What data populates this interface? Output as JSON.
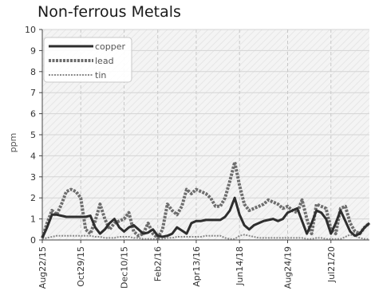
{
  "chart_data": {
    "type": "line",
    "title": "Non-ferrous Metals",
    "ylabel": "ppm",
    "ylim": [
      0,
      10
    ],
    "yticks": [
      "0",
      "1",
      "2",
      "3",
      "4",
      "5",
      "6",
      "7",
      "8",
      "9",
      "10"
    ],
    "xtick_labels": [
      "Aug22/15",
      "Oct29/15",
      "Dec10/15",
      "Feb2/16",
      "Apr13/16",
      "Jun14/18",
      "Aug24/19",
      "Jul21/20"
    ],
    "xtick_index": [
      0,
      8,
      17,
      24,
      32,
      41,
      51,
      60
    ],
    "n_points": 69,
    "grid": true,
    "legend_position": "top-left",
    "colors": {
      "copper": "#2e2e2e",
      "lead": "#6e6e6e",
      "tin": "#8a8a8a"
    },
    "series": [
      {
        "name": "copper",
        "style": "solid",
        "values": [
          0.1,
          0.6,
          1.2,
          1.2,
          1.15,
          1.1,
          1.1,
          1.1,
          1.1,
          1.1,
          1.15,
          0.6,
          0.3,
          0.5,
          0.8,
          1.0,
          0.6,
          0.4,
          0.6,
          0.7,
          0.5,
          0.3,
          0.35,
          0.5,
          0.2,
          0.15,
          0.2,
          0.3,
          0.6,
          0.45,
          0.3,
          0.8,
          0.9,
          0.9,
          0.95,
          0.95,
          0.95,
          0.95,
          1.1,
          1.4,
          2.0,
          1.2,
          0.7,
          0.5,
          0.7,
          0.8,
          0.9,
          0.95,
          1.0,
          0.9,
          1.0,
          1.3,
          1.4,
          1.5,
          0.9,
          0.3,
          0.8,
          1.4,
          1.3,
          1.0,
          0.3,
          0.8,
          1.4,
          0.9,
          0.4,
          0.2,
          0.3,
          0.6,
          0.8
        ]
      },
      {
        "name": "lead",
        "style": "dashed-thick",
        "values": [
          0.1,
          0.8,
          1.4,
          1.2,
          1.7,
          2.3,
          2.4,
          2.3,
          2.0,
          0.5,
          0.3,
          0.9,
          1.7,
          1.0,
          0.5,
          0.8,
          0.9,
          1.0,
          1.3,
          0.4,
          0.2,
          0.3,
          0.8,
          0.3,
          0.1,
          0.5,
          1.7,
          1.4,
          1.2,
          1.6,
          2.4,
          2.2,
          2.4,
          2.3,
          2.2,
          2.0,
          1.6,
          1.6,
          2.0,
          2.8,
          3.7,
          2.6,
          1.7,
          1.4,
          1.5,
          1.6,
          1.7,
          1.9,
          1.8,
          1.7,
          1.5,
          1.6,
          1.4,
          1.3,
          1.9,
          1.0,
          0.3,
          1.7,
          1.6,
          1.5,
          0.5,
          0.3,
          1.5,
          1.6,
          0.8,
          0.4,
          0.3,
          0.6,
          0.8
        ]
      },
      {
        "name": "tin",
        "style": "dotted",
        "values": [
          0.05,
          0.1,
          0.15,
          0.2,
          0.2,
          0.2,
          0.2,
          0.2,
          0.2,
          0.2,
          0.2,
          0.15,
          0.15,
          0.1,
          0.1,
          0.1,
          0.15,
          0.15,
          0.15,
          0.1,
          0.1,
          0.05,
          0.05,
          0.05,
          0.05,
          0.05,
          0.1,
          0.1,
          0.15,
          0.15,
          0.15,
          0.15,
          0.15,
          0.15,
          0.2,
          0.2,
          0.2,
          0.2,
          0.1,
          0.05,
          0.05,
          0.2,
          0.25,
          0.2,
          0.15,
          0.1,
          0.1,
          0.1,
          0.1,
          0.1,
          0.1,
          0.1,
          0.1,
          0.1,
          0.1,
          0.05,
          0.05,
          0.1,
          0.1,
          0.05,
          0.05,
          0.05,
          0.05,
          0.15,
          0.25,
          0.2,
          0.1,
          0.05,
          0.05
        ]
      }
    ]
  }
}
